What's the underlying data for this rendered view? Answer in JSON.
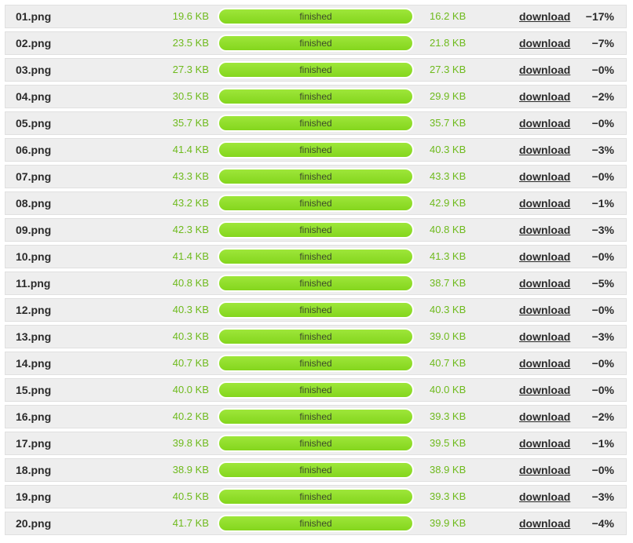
{
  "status_color": "#8ddf24",
  "rows": [
    {
      "file": "01.png",
      "original": "19.6 KB",
      "status": "finished",
      "progress": 100,
      "compressed": "16.2 KB",
      "link": "download",
      "saving": "−17%"
    },
    {
      "file": "02.png",
      "original": "23.5 KB",
      "status": "finished",
      "progress": 100,
      "compressed": "21.8 KB",
      "link": "download",
      "saving": "−7%"
    },
    {
      "file": "03.png",
      "original": "27.3 KB",
      "status": "finished",
      "progress": 100,
      "compressed": "27.3 KB",
      "link": "download",
      "saving": "−0%"
    },
    {
      "file": "04.png",
      "original": "30.5 KB",
      "status": "finished",
      "progress": 100,
      "compressed": "29.9 KB",
      "link": "download",
      "saving": "−2%"
    },
    {
      "file": "05.png",
      "original": "35.7 KB",
      "status": "finished",
      "progress": 100,
      "compressed": "35.7 KB",
      "link": "download",
      "saving": "−0%"
    },
    {
      "file": "06.png",
      "original": "41.4 KB",
      "status": "finished",
      "progress": 100,
      "compressed": "40.3 KB",
      "link": "download",
      "saving": "−3%"
    },
    {
      "file": "07.png",
      "original": "43.3 KB",
      "status": "finished",
      "progress": 100,
      "compressed": "43.3 KB",
      "link": "download",
      "saving": "−0%"
    },
    {
      "file": "08.png",
      "original": "43.2 KB",
      "status": "finished",
      "progress": 100,
      "compressed": "42.9 KB",
      "link": "download",
      "saving": "−1%"
    },
    {
      "file": "09.png",
      "original": "42.3 KB",
      "status": "finished",
      "progress": 100,
      "compressed": "40.8 KB",
      "link": "download",
      "saving": "−3%"
    },
    {
      "file": "10.png",
      "original": "41.4 KB",
      "status": "finished",
      "progress": 100,
      "compressed": "41.3 KB",
      "link": "download",
      "saving": "−0%"
    },
    {
      "file": "11.png",
      "original": "40.8 KB",
      "status": "finished",
      "progress": 100,
      "compressed": "38.7 KB",
      "link": "download",
      "saving": "−5%"
    },
    {
      "file": "12.png",
      "original": "40.3 KB",
      "status": "finished",
      "progress": 100,
      "compressed": "40.3 KB",
      "link": "download",
      "saving": "−0%"
    },
    {
      "file": "13.png",
      "original": "40.3 KB",
      "status": "finished",
      "progress": 100,
      "compressed": "39.0 KB",
      "link": "download",
      "saving": "−3%"
    },
    {
      "file": "14.png",
      "original": "40.7 KB",
      "status": "finished",
      "progress": 100,
      "compressed": "40.7 KB",
      "link": "download",
      "saving": "−0%"
    },
    {
      "file": "15.png",
      "original": "40.0 KB",
      "status": "finished",
      "progress": 100,
      "compressed": "40.0 KB",
      "link": "download",
      "saving": "−0%"
    },
    {
      "file": "16.png",
      "original": "40.2 KB",
      "status": "finished",
      "progress": 100,
      "compressed": "39.3 KB",
      "link": "download",
      "saving": "−2%"
    },
    {
      "file": "17.png",
      "original": "39.8 KB",
      "status": "finished",
      "progress": 100,
      "compressed": "39.5 KB",
      "link": "download",
      "saving": "−1%"
    },
    {
      "file": "18.png",
      "original": "38.9 KB",
      "status": "finished",
      "progress": 100,
      "compressed": "38.9 KB",
      "link": "download",
      "saving": "−0%"
    },
    {
      "file": "19.png",
      "original": "40.5 KB",
      "status": "finished",
      "progress": 100,
      "compressed": "39.3 KB",
      "link": "download",
      "saving": "−3%"
    },
    {
      "file": "20.png",
      "original": "41.7 KB",
      "status": "finished",
      "progress": 100,
      "compressed": "39.9 KB",
      "link": "download",
      "saving": "−4%"
    }
  ]
}
